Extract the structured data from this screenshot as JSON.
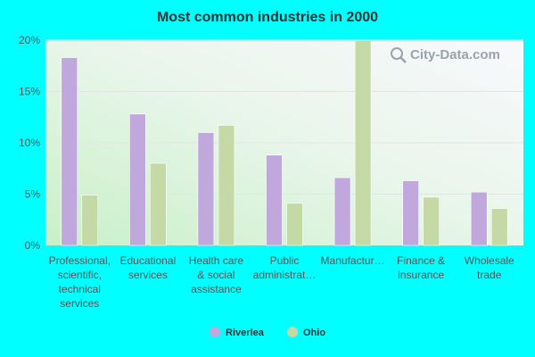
{
  "chart_data": {
    "type": "bar",
    "title": "Most common industries in 2000",
    "categories": [
      [
        "Professional,",
        "scientific,",
        "technical",
        "services"
      ],
      [
        "Educational",
        "services"
      ],
      [
        "Health care",
        "& social",
        "assistance"
      ],
      [
        "Public",
        "administrat…"
      ],
      [
        "Manufactur…"
      ],
      [
        "Finance &",
        "insurance"
      ],
      [
        "Wholesale",
        "trade"
      ]
    ],
    "series": [
      {
        "name": "Riverlea",
        "color": "#c0a8dc",
        "values": [
          18.3,
          12.8,
          11.0,
          8.8,
          6.6,
          6.3,
          5.2
        ]
      },
      {
        "name": "Ohio",
        "color": "#c5d9a6",
        "values": [
          4.9,
          8.0,
          11.7,
          4.1,
          20.0,
          4.7,
          3.6
        ]
      }
    ],
    "ylim": [
      0,
      20
    ],
    "yticks": [
      0,
      5,
      10,
      15,
      20
    ],
    "ytick_labels": [
      "0%",
      "5%",
      "10%",
      "15%",
      "20%"
    ],
    "grid": true,
    "legend": "bottom-center",
    "xlabel": "",
    "ylabel": ""
  },
  "watermark": {
    "text": "City-Data.com",
    "icon": "magnifier-icon"
  },
  "colors": {
    "background": "#00ffff",
    "grid": "#e4e4e4"
  }
}
